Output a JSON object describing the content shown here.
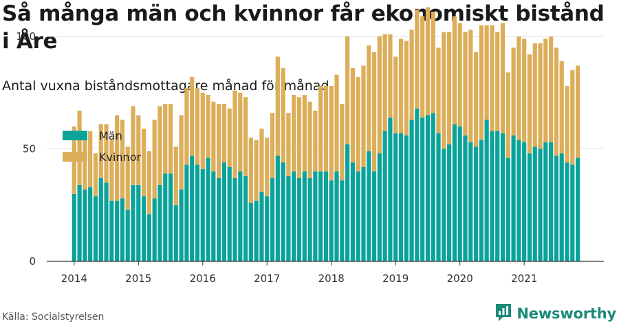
{
  "title": "Så många män och kvinnor får ekonomiskt bistånd i Åre",
  "subtitle": "Antal vuxna biståndsmottagare månad för månad",
  "source": "Källa: Socialstyrelsen",
  "brand": {
    "name": "Newsworthy",
    "icon": "newsworthy-logo-icon"
  },
  "colors": {
    "man": "#0aa39a",
    "kvinnor": "#dcae5a",
    "grid": "#dddddd",
    "axis": "#333333"
  },
  "chart_data": {
    "type": "bar",
    "stacked": true,
    "x_start": "2014-01",
    "x_ticks": [
      "2014",
      "2015",
      "2016",
      "2017",
      "2018",
      "2019",
      "2020",
      "2021"
    ],
    "y_ticks": [
      0,
      50,
      100
    ],
    "ylim": [
      0,
      115
    ],
    "grid": true,
    "legend_position": "top-left",
    "series": [
      {
        "name": "Män",
        "color": "#0aa39a",
        "values": [
          30,
          34,
          32,
          33,
          29,
          37,
          35,
          27,
          27,
          28,
          23,
          34,
          34,
          29,
          21,
          28,
          34,
          39,
          39,
          25,
          32,
          43,
          47,
          43,
          41,
          46,
          40,
          37,
          44,
          42,
          37,
          40,
          38,
          26,
          27,
          31,
          29,
          37,
          47,
          44,
          38,
          40,
          37,
          40,
          37,
          40,
          40,
          40,
          36,
          40,
          36,
          52,
          44,
          40,
          42,
          49,
          40,
          48,
          58,
          64,
          57,
          57,
          56,
          63,
          68,
          64,
          65,
          66,
          57,
          50,
          52,
          61,
          60,
          56,
          53,
          51,
          54,
          63,
          58,
          58,
          57,
          46,
          56,
          54,
          53,
          48,
          51,
          50,
          53,
          53,
          47,
          48,
          44,
          43,
          46
        ]
      },
      {
        "name": "Kvinnor",
        "color": "#dcae5a",
        "values": [
          30,
          33,
          22,
          25,
          19,
          24,
          26,
          27,
          38,
          35,
          28,
          35,
          31,
          30,
          28,
          35,
          35,
          31,
          31,
          26,
          33,
          34,
          35,
          34,
          34,
          28,
          31,
          33,
          26,
          26,
          39,
          35,
          35,
          29,
          27,
          28,
          26,
          29,
          44,
          42,
          28,
          34,
          36,
          34,
          34,
          27,
          38,
          38,
          42,
          43,
          34,
          48,
          42,
          42,
          45,
          47,
          53,
          52,
          43,
          37,
          34,
          42,
          42,
          40,
          44,
          45,
          48,
          45,
          38,
          52,
          50,
          48,
          46,
          46,
          50,
          42,
          51,
          42,
          47,
          44,
          49,
          38,
          39,
          46,
          46,
          44,
          46,
          47,
          46,
          47,
          48,
          41,
          34,
          42,
          41
        ]
      }
    ]
  }
}
